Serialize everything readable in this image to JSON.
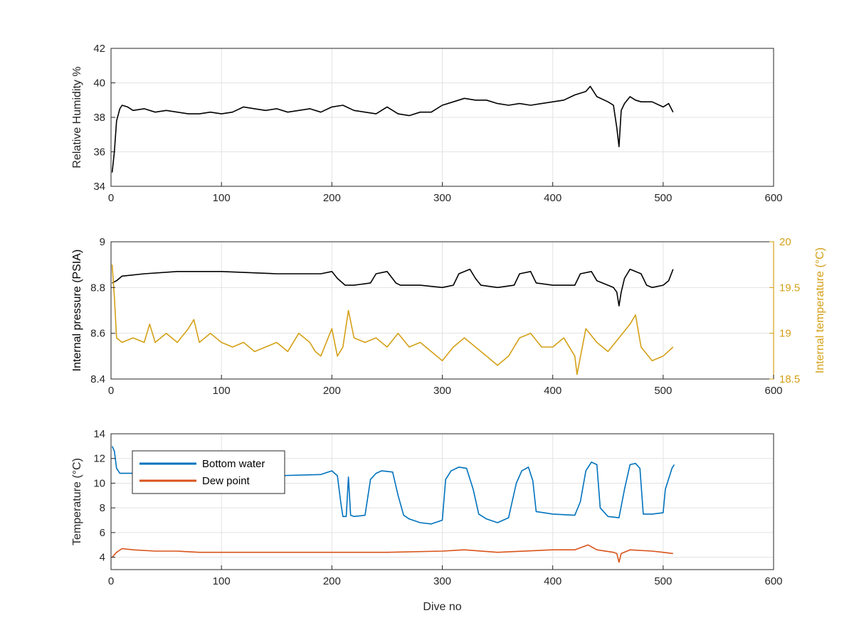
{
  "chart_data": [
    {
      "type": "line",
      "xlabel": "",
      "ylabel": "Relative Humidity %",
      "xlim": [
        0,
        600
      ],
      "ylim": [
        34,
        42
      ],
      "xticks": [
        0,
        100,
        200,
        300,
        400,
        500,
        600
      ],
      "yticks": [
        34,
        36,
        38,
        40,
        42
      ],
      "grid": true,
      "series": [
        {
          "color": "#000000",
          "x": [
            1,
            3,
            5,
            8,
            10,
            15,
            20,
            30,
            40,
            50,
            60,
            70,
            80,
            90,
            100,
            110,
            120,
            130,
            140,
            150,
            160,
            170,
            180,
            190,
            200,
            210,
            220,
            230,
            240,
            250,
            260,
            270,
            280,
            290,
            300,
            310,
            320,
            330,
            340,
            350,
            360,
            370,
            380,
            390,
            400,
            410,
            420,
            430,
            434,
            440,
            450,
            455,
            458,
            460,
            462,
            465,
            470,
            475,
            480,
            490,
            500,
            505,
            509
          ],
          "y": [
            34.8,
            36.0,
            37.8,
            38.5,
            38.7,
            38.6,
            38.4,
            38.5,
            38.3,
            38.4,
            38.3,
            38.2,
            38.2,
            38.3,
            38.2,
            38.3,
            38.6,
            38.5,
            38.4,
            38.5,
            38.3,
            38.4,
            38.5,
            38.3,
            38.6,
            38.7,
            38.4,
            38.3,
            38.2,
            38.6,
            38.2,
            38.1,
            38.3,
            38.3,
            38.7,
            38.9,
            39.1,
            39.0,
            39.0,
            38.8,
            38.7,
            38.8,
            38.7,
            38.8,
            38.9,
            39.0,
            39.3,
            39.5,
            39.8,
            39.2,
            38.9,
            38.7,
            37.4,
            36.3,
            38.4,
            38.8,
            39.2,
            39.0,
            38.9,
            38.9,
            38.6,
            38.8,
            38.3
          ]
        }
      ]
    },
    {
      "type": "line",
      "xlabel": "",
      "ylabel": "Internal pressure (PSIA)",
      "y2label": "Internal temperature (°C)",
      "xlim": [
        0,
        600
      ],
      "ylim": [
        8.4,
        9
      ],
      "y2lim": [
        18.5,
        20
      ],
      "xticks": [
        0,
        100,
        200,
        300,
        400,
        500,
        600
      ],
      "yticks": [
        8.4,
        8.6,
        8.8,
        9
      ],
      "y2ticks": [
        18.5,
        19,
        19.5,
        20
      ],
      "grid": true,
      "series": [
        {
          "axis": "left",
          "color": "#000000",
          "x": [
            1,
            5,
            10,
            30,
            60,
            100,
            150,
            190,
            200,
            205,
            212,
            220,
            235,
            240,
            250,
            258,
            262,
            280,
            300,
            310,
            315,
            325,
            330,
            335,
            350,
            365,
            370,
            380,
            385,
            400,
            420,
            425,
            435,
            440,
            455,
            458,
            460,
            462,
            465,
            470,
            480,
            485,
            490,
            500,
            505,
            509
          ],
          "y": [
            8.82,
            8.83,
            8.85,
            8.86,
            8.87,
            8.87,
            8.86,
            8.86,
            8.87,
            8.84,
            8.81,
            8.81,
            8.82,
            8.86,
            8.87,
            8.82,
            8.81,
            8.81,
            8.8,
            8.81,
            8.86,
            8.88,
            8.84,
            8.81,
            8.8,
            8.81,
            8.86,
            8.87,
            8.82,
            8.81,
            8.81,
            8.86,
            8.87,
            8.83,
            8.8,
            8.78,
            8.72,
            8.78,
            8.84,
            8.88,
            8.86,
            8.81,
            8.8,
            8.81,
            8.83,
            8.88
          ]
        },
        {
          "axis": "right",
          "color": "#D4A017",
          "x": [
            1,
            3,
            5,
            10,
            20,
            30,
            35,
            40,
            50,
            60,
            70,
            75,
            80,
            90,
            100,
            110,
            120,
            130,
            140,
            150,
            160,
            170,
            180,
            185,
            190,
            200,
            205,
            210,
            215,
            220,
            230,
            240,
            250,
            260,
            270,
            280,
            290,
            300,
            310,
            320,
            330,
            340,
            350,
            360,
            370,
            380,
            390,
            400,
            410,
            420,
            422,
            430,
            440,
            450,
            460,
            470,
            475,
            480,
            490,
            500,
            509
          ],
          "y": [
            19.75,
            19.4,
            18.95,
            18.9,
            18.95,
            18.9,
            19.1,
            18.9,
            19.0,
            18.9,
            19.05,
            19.15,
            18.9,
            19.0,
            18.9,
            18.85,
            18.9,
            18.8,
            18.85,
            18.9,
            18.8,
            19.0,
            18.9,
            18.8,
            18.75,
            19.05,
            18.75,
            18.85,
            19.25,
            18.95,
            18.9,
            18.95,
            18.85,
            19.0,
            18.85,
            18.9,
            18.8,
            18.7,
            18.85,
            18.95,
            18.85,
            18.75,
            18.65,
            18.75,
            18.95,
            19.0,
            18.85,
            18.85,
            18.95,
            18.75,
            18.55,
            19.05,
            18.9,
            18.8,
            18.95,
            19.1,
            19.2,
            18.85,
            18.7,
            18.75,
            18.85
          ]
        }
      ]
    },
    {
      "type": "line",
      "xlabel": "Dive no",
      "ylabel": "Temperature (°C)",
      "xlim": [
        0,
        600
      ],
      "ylim": [
        3,
        14
      ],
      "xticks": [
        0,
        100,
        200,
        300,
        400,
        500,
        600
      ],
      "yticks": [
        4,
        6,
        8,
        10,
        12,
        14
      ],
      "grid": true,
      "legend": "top-left",
      "series": [
        {
          "name": "Bottom water",
          "color": "#0072BD",
          "x": [
            1,
            3,
            5,
            8,
            20,
            50,
            100,
            150,
            190,
            200,
            205,
            208,
            210,
            213,
            215,
            217,
            220,
            230,
            235,
            240,
            245,
            255,
            260,
            265,
            270,
            280,
            290,
            300,
            303,
            308,
            315,
            322,
            328,
            333,
            340,
            350,
            360,
            367,
            372,
            378,
            382,
            385,
            400,
            420,
            425,
            430,
            435,
            440,
            443,
            450,
            460,
            465,
            470,
            475,
            479,
            482,
            490,
            500,
            502,
            508,
            510
          ],
          "y": [
            13.0,
            12.6,
            11.2,
            10.8,
            10.8,
            10.9,
            10.8,
            10.6,
            10.7,
            11.0,
            10.6,
            8.5,
            7.3,
            7.3,
            10.5,
            7.4,
            7.3,
            7.4,
            10.3,
            10.8,
            11.0,
            10.9,
            9.0,
            7.4,
            7.1,
            6.8,
            6.7,
            7.0,
            10.3,
            11.0,
            11.3,
            11.2,
            9.5,
            7.5,
            7.1,
            6.8,
            7.2,
            10.0,
            11.0,
            11.3,
            10.2,
            7.7,
            7.5,
            7.4,
            8.5,
            11.0,
            11.7,
            11.5,
            8.0,
            7.3,
            7.2,
            9.5,
            11.5,
            11.6,
            11.2,
            7.5,
            7.5,
            7.6,
            9.5,
            11.2,
            11.5
          ]
        },
        {
          "name": "Dew point",
          "color": "#D95319",
          "x": [
            1,
            5,
            10,
            20,
            40,
            60,
            80,
            100,
            150,
            200,
            250,
            300,
            320,
            350,
            400,
            420,
            432,
            440,
            455,
            458,
            460,
            462,
            470,
            490,
            500,
            509
          ],
          "y": [
            4.0,
            4.4,
            4.7,
            4.6,
            4.5,
            4.5,
            4.4,
            4.4,
            4.4,
            4.4,
            4.4,
            4.5,
            4.6,
            4.4,
            4.6,
            4.6,
            5.0,
            4.6,
            4.4,
            4.3,
            3.6,
            4.3,
            4.6,
            4.5,
            4.4,
            4.3
          ]
        }
      ]
    }
  ]
}
